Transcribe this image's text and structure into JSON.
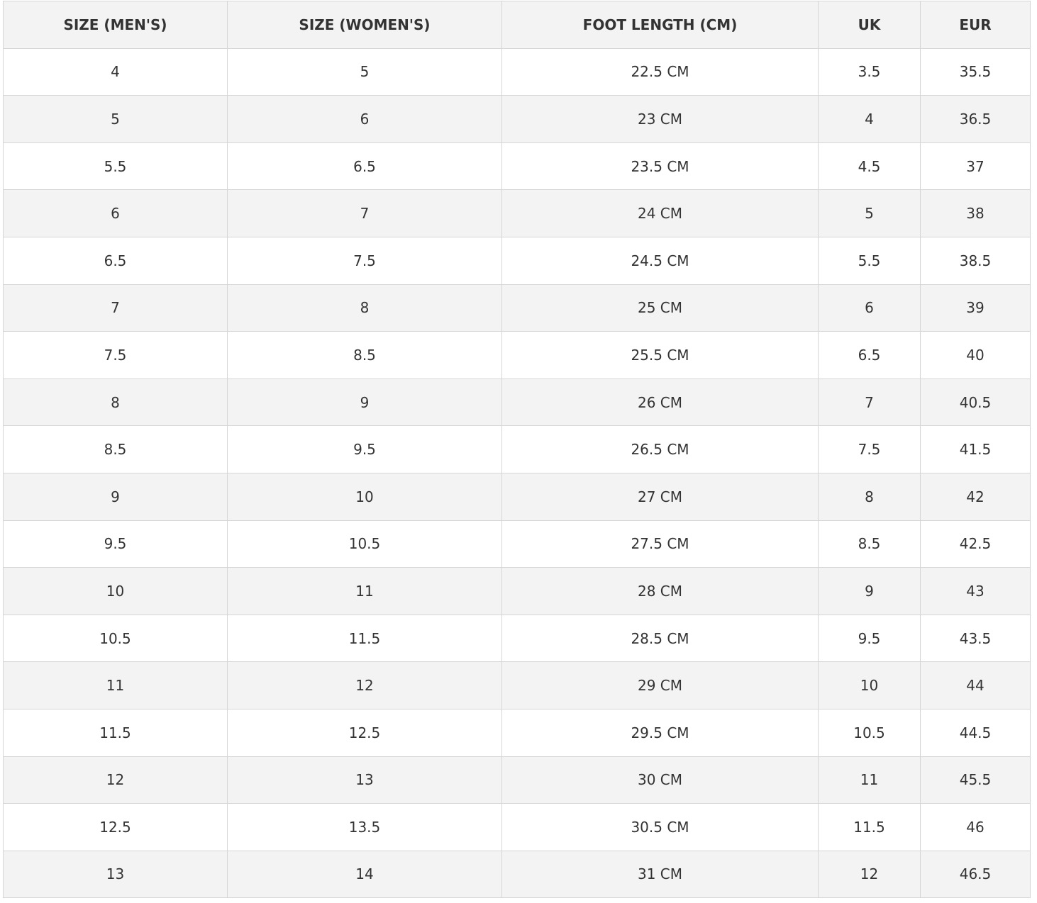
{
  "table": {
    "header": [
      "SIZE (MEN'S)",
      "SIZE (WOMEN'S)",
      "FOOT LENGTH (CM)",
      "UK",
      "EUR"
    ],
    "rows": [
      [
        "4",
        "5",
        "22.5 CM",
        "3.5",
        "35.5"
      ],
      [
        "5",
        "6",
        "23 CM",
        "4",
        "36.5"
      ],
      [
        "5.5",
        "6.5",
        "23.5 CM",
        "4.5",
        "37"
      ],
      [
        "6",
        "7",
        "24 CM",
        "5",
        "38"
      ],
      [
        "6.5",
        "7.5",
        "24.5 CM",
        "5.5",
        "38.5"
      ],
      [
        "7",
        "8",
        "25 CM",
        "6",
        "39"
      ],
      [
        "7.5",
        "8.5",
        "25.5 CM",
        "6.5",
        "40"
      ],
      [
        "8",
        "9",
        "26 CM",
        "7",
        "40.5"
      ],
      [
        "8.5",
        "9.5",
        "26.5 CM",
        "7.5",
        "41.5"
      ],
      [
        "9",
        "10",
        "27 CM",
        "8",
        "42"
      ],
      [
        "9.5",
        "10.5",
        "27.5 CM",
        "8.5",
        "42.5"
      ],
      [
        "10",
        "11",
        "28 CM",
        "9",
        "43"
      ],
      [
        "10.5",
        "11.5",
        "28.5 CM",
        "9.5",
        "43.5"
      ],
      [
        "11",
        "12",
        "29 CM",
        "10",
        "44"
      ],
      [
        "11.5",
        "12.5",
        "29.5 CM",
        "10.5",
        "44.5"
      ],
      [
        "12",
        "13",
        "30 CM",
        "11",
        "45.5"
      ],
      [
        "12.5",
        "13.5",
        "30.5 CM",
        "11.5",
        "46"
      ],
      [
        "13",
        "14",
        "31 CM",
        "12",
        "46.5"
      ]
    ]
  }
}
